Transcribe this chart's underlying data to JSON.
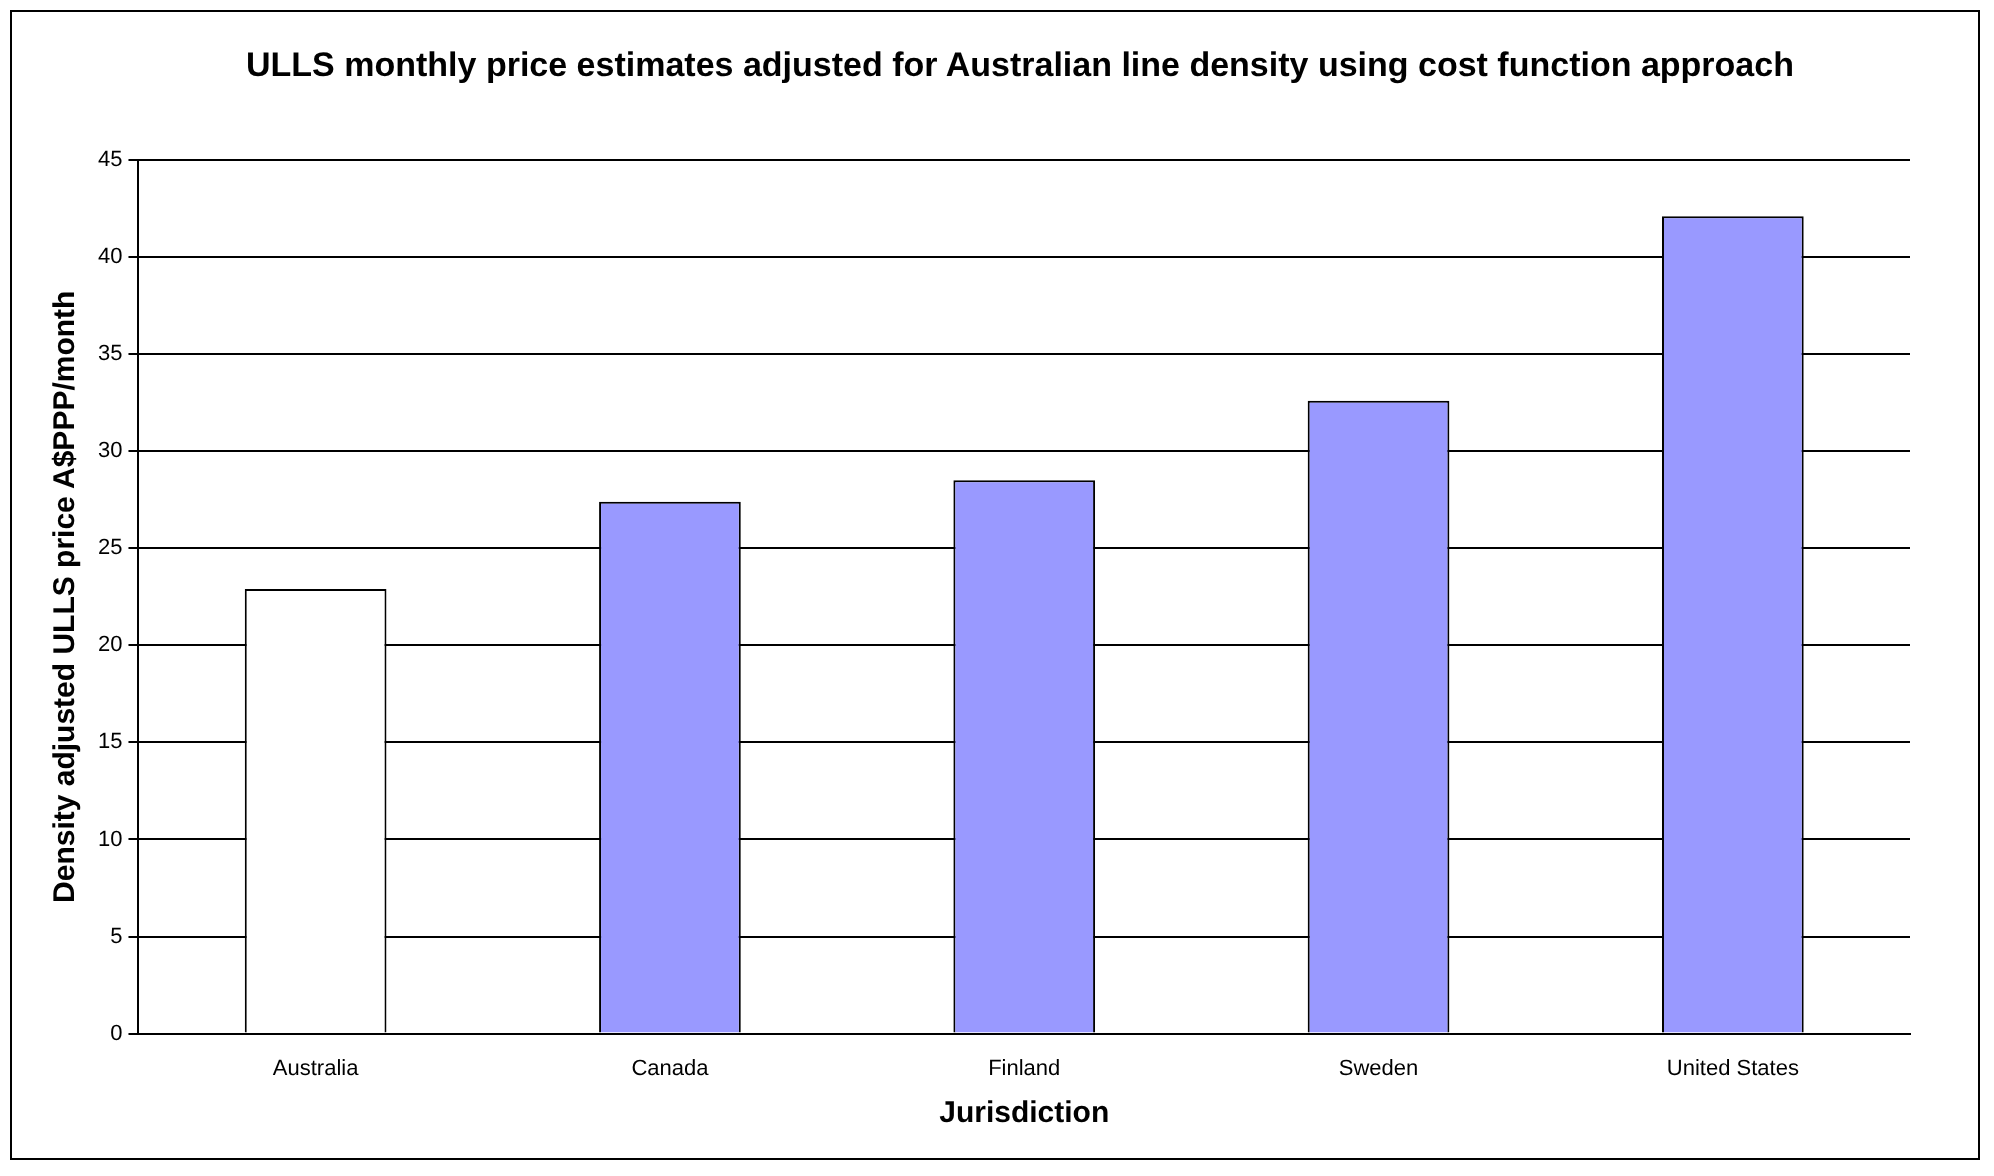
{
  "chart_data": {
    "type": "bar",
    "title": "ULLS monthly price estimates adjusted for Australian line density using cost function approach",
    "xlabel": "Jurisdiction",
    "ylabel": "Density adjusted ULLS price A$PPP/month",
    "categories": [
      "Australia",
      "Canada",
      "Finland",
      "Sweden",
      "United States"
    ],
    "values": [
      22.9,
      27.4,
      28.5,
      32.6,
      42.1
    ],
    "colors": [
      "#ffffff",
      "#9999ff",
      "#9999ff",
      "#9999ff",
      "#9999ff"
    ],
    "ylim": [
      0,
      45
    ],
    "yticks": [
      0,
      5,
      10,
      15,
      20,
      25,
      30,
      35,
      40,
      45
    ],
    "grid": "y",
    "legend": false
  }
}
